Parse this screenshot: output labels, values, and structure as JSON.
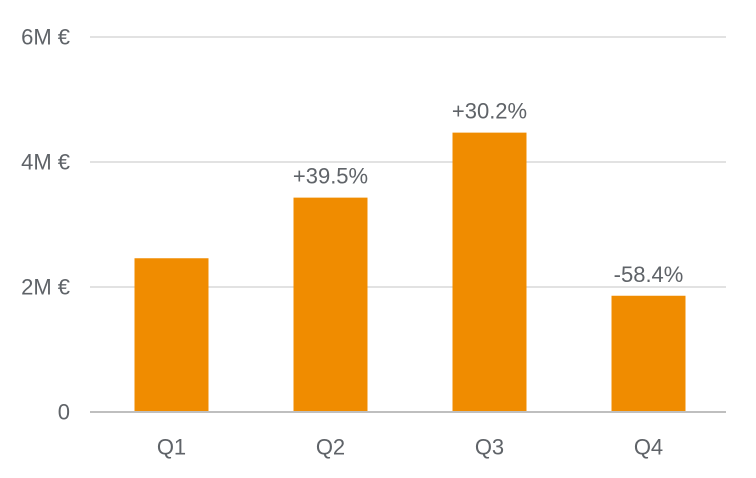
{
  "chart_data": {
    "type": "bar",
    "title": "",
    "xlabel": "",
    "ylabel": "",
    "categories": [
      "Q1",
      "Q2",
      "Q3",
      "Q4"
    ],
    "values": [
      2.46,
      3.43,
      4.47,
      1.86
    ],
    "value_unit": "M €",
    "data_labels": [
      "",
      "+39.5%",
      "+30.2%",
      "-58.4%"
    ],
    "ylim": [
      0,
      6
    ],
    "yticks": [
      0,
      2,
      4,
      6
    ],
    "ytick_labels": [
      "0",
      "2M €",
      "4M €",
      "6M €"
    ],
    "grid": true,
    "legend": "none",
    "colors": {
      "bar": "#F08C00",
      "grid": "#d9d9d9",
      "axis": "#bfbfbf",
      "text": "#5f6368"
    }
  }
}
